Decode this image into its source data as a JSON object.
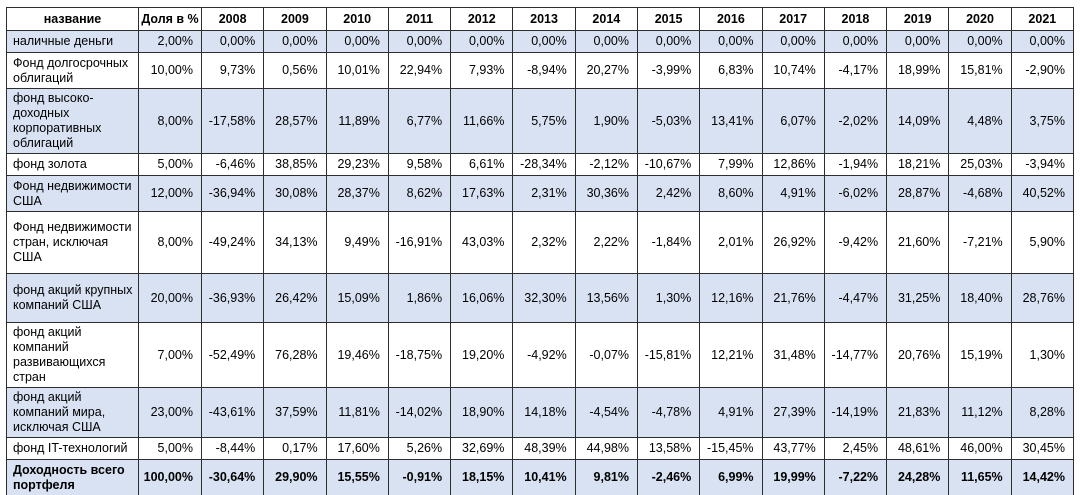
{
  "colors": {
    "background": "#ffffff",
    "row_highlight": "#d9e2f3",
    "border": "#2d2d2d",
    "text": "#000000"
  },
  "chart_data": {
    "type": "table",
    "columns": [
      "название",
      "Доля в %",
      "2008",
      "2009",
      "2010",
      "2011",
      "2012",
      "2013",
      "2014",
      "2015",
      "2016",
      "2017",
      "2018",
      "2019",
      "2020",
      "2021"
    ],
    "rows": [
      {
        "name": "наличные деньги",
        "share": "2,00%",
        "values": [
          "0,00%",
          "0,00%",
          "0,00%",
          "0,00%",
          "0,00%",
          "0,00%",
          "0,00%",
          "0,00%",
          "0,00%",
          "0,00%",
          "0,00%",
          "0,00%",
          "0,00%",
          "0,00%"
        ],
        "highlighted": true,
        "bold": false
      },
      {
        "name": "Фонд долгосрочных облигаций",
        "share": "10,00%",
        "values": [
          "9,73%",
          "0,56%",
          "10,01%",
          "22,94%",
          "7,93%",
          "-8,94%",
          "20,27%",
          "-3,99%",
          "6,83%",
          "10,74%",
          "-4,17%",
          "18,99%",
          "15,81%",
          "-2,90%"
        ],
        "highlighted": false,
        "bold": false
      },
      {
        "name": "фонд высоко-доходных корпоративных облигаций",
        "share": "8,00%",
        "values": [
          "-17,58%",
          "28,57%",
          "11,89%",
          "6,77%",
          "11,66%",
          "5,75%",
          "1,90%",
          "-5,03%",
          "13,41%",
          "6,07%",
          "-2,02%",
          "14,09%",
          "4,48%",
          "3,75%"
        ],
        "highlighted": true,
        "bold": false
      },
      {
        "name": "фонд золота",
        "share": "5,00%",
        "values": [
          "-6,46%",
          "38,85%",
          "29,23%",
          "9,58%",
          "6,61%",
          "-28,34%",
          "-2,12%",
          "-10,67%",
          "7,99%",
          "12,86%",
          "-1,94%",
          "18,21%",
          "25,03%",
          "-3,94%"
        ],
        "highlighted": false,
        "bold": false
      },
      {
        "name": "Фонд недвижимости США",
        "share": "12,00%",
        "values": [
          "-36,94%",
          "30,08%",
          "28,37%",
          "8,62%",
          "17,63%",
          "2,31%",
          "30,36%",
          "2,42%",
          "8,60%",
          "4,91%",
          "-6,02%",
          "28,87%",
          "-4,68%",
          "40,52%"
        ],
        "highlighted": true,
        "bold": false
      },
      {
        "name": "Фонд недвижимости стран, исключая США",
        "share": "8,00%",
        "values": [
          "-49,24%",
          "34,13%",
          "9,49%",
          "-16,91%",
          "43,03%",
          "2,32%",
          "2,22%",
          "-1,84%",
          "2,01%",
          "26,92%",
          "-9,42%",
          "21,60%",
          "-7,21%",
          "5,90%"
        ],
        "highlighted": false,
        "bold": false
      },
      {
        "name": "фонд акций крупных компаний США",
        "share": "20,00%",
        "values": [
          "-36,93%",
          "26,42%",
          "15,09%",
          "1,86%",
          "16,06%",
          "32,30%",
          "13,56%",
          "1,30%",
          "12,16%",
          "21,76%",
          "-4,47%",
          "31,25%",
          "18,40%",
          "28,76%"
        ],
        "highlighted": true,
        "bold": false
      },
      {
        "name": "фонд акций компаний развивающихся стран",
        "share": "7,00%",
        "values": [
          "-52,49%",
          "76,28%",
          "19,46%",
          "-18,75%",
          "19,20%",
          "-4,92%",
          "-0,07%",
          "-15,81%",
          "12,21%",
          "31,48%",
          "-14,77%",
          "20,76%",
          "15,19%",
          "1,30%"
        ],
        "highlighted": false,
        "bold": false
      },
      {
        "name": "фонд акций компаний мира, исключая США",
        "share": "23,00%",
        "values": [
          "-43,61%",
          "37,59%",
          "11,81%",
          "-14,02%",
          "18,90%",
          "14,18%",
          "-4,54%",
          "-4,78%",
          "4,91%",
          "27,39%",
          "-14,19%",
          "21,83%",
          "11,12%",
          "8,28%"
        ],
        "highlighted": true,
        "bold": false
      },
      {
        "name": "фонд IT-технологий",
        "share": "5,00%",
        "values": [
          "-8,44%",
          "0,17%",
          "17,60%",
          "5,26%",
          "32,69%",
          "48,39%",
          "44,98%",
          "13,58%",
          "-15,45%",
          "43,77%",
          "2,45%",
          "48,61%",
          "46,00%",
          "30,45%"
        ],
        "highlighted": false,
        "bold": false
      },
      {
        "name": "Доходность всего портфеля",
        "share": "100,00%",
        "values": [
          "-30,64%",
          "29,90%",
          "15,55%",
          "-0,91%",
          "18,15%",
          "10,41%",
          "9,81%",
          "-2,46%",
          "6,99%",
          "19,99%",
          "-7,22%",
          "24,28%",
          "11,65%",
          "14,42%"
        ],
        "highlighted": true,
        "bold": true
      }
    ]
  }
}
